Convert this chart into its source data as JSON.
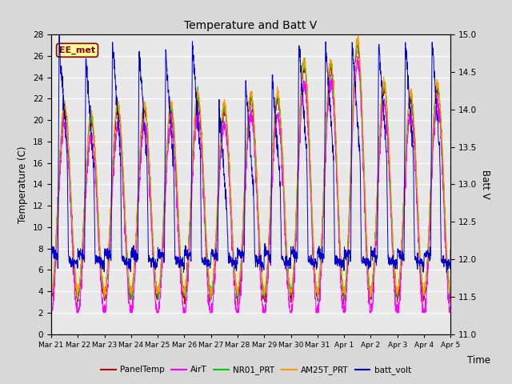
{
  "title": "Temperature and Batt V",
  "ylabel_left": "Temperature (C)",
  "ylabel_right": "Batt V",
  "xlabel": "Time",
  "ylim_left": [
    0,
    28
  ],
  "ylim_right": [
    11.0,
    15.0
  ],
  "xtick_labels": [
    "Mar 21",
    "Mar 22",
    "Mar 23",
    "Mar 24",
    "Mar 25",
    "Mar 26",
    "Mar 27",
    "Mar 28",
    "Mar 29",
    "Mar 30",
    "Mar 31",
    "Apr 1",
    "Apr 2",
    "Apr 3",
    "Apr 4",
    "Apr 5"
  ],
  "yticks_left": [
    0,
    2,
    4,
    6,
    8,
    10,
    12,
    14,
    16,
    18,
    20,
    22,
    24,
    26,
    28
  ],
  "yticks_right": [
    11.0,
    11.5,
    12.0,
    12.5,
    13.0,
    13.5,
    14.0,
    14.5,
    15.0
  ],
  "legend_labels": [
    "PanelTemp",
    "AirT",
    "NR01_PRT",
    "AM25T_PRT",
    "batt_volt"
  ],
  "legend_colors": [
    "#cc0000",
    "#ff00ff",
    "#00cc00",
    "#ff9900",
    "#0000cc"
  ],
  "station_label": "EE_met",
  "station_label_color": "#880000",
  "station_box_color": "#ffff99",
  "bg_color": "#d8d8d8",
  "plot_bg_color": "#e8e8e8",
  "grid_color": "#ffffff",
  "n_days": 15,
  "pts_per_day": 144,
  "peak_heights": [
    21,
    20,
    21,
    21,
    21,
    22,
    21,
    22,
    22,
    25,
    25,
    27,
    23,
    22,
    23
  ],
  "batt_spikes": [
    14.9,
    14.7,
    14.9,
    14.8,
    14.75,
    14.9,
    14.1,
    14.4,
    14.5,
    14.9,
    14.9,
    14.9,
    14.9,
    14.9,
    14.9
  ]
}
